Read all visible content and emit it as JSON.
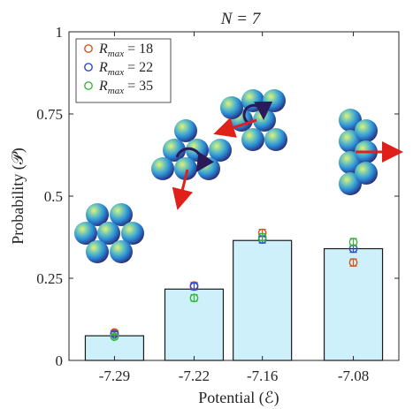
{
  "chart_data": {
    "type": "bar",
    "title": "N = 7",
    "xlabel": "Potential (ℰ)",
    "ylabel": "Probability (𝒫)",
    "x_positions": [
      -7.29,
      -7.22,
      -7.16,
      -7.08
    ],
    "categories": [
      "-7.29",
      "-7.22",
      "-7.16",
      "-7.08"
    ],
    "values": [
      0.075,
      0.217,
      0.365,
      0.34
    ],
    "xlim": [
      -7.33,
      -7.04
    ],
    "ylim": [
      0,
      1
    ],
    "yticks": [
      "0",
      "0.25",
      "0.5",
      "0.75",
      "1"
    ],
    "ytick_values": [
      0,
      0.25,
      0.5,
      0.75,
      1
    ],
    "bar_color": "#cdf0fb",
    "series": [
      {
        "name": "R_max = 18",
        "label_main": "R",
        "label_sub": "max",
        "label_rest": " = 18",
        "color": "#d95319",
        "values": [
          0.085,
          0.228,
          0.388,
          0.298
        ],
        "err": [
          0.007,
          0.01,
          0.011,
          0.011
        ]
      },
      {
        "name": "R_max = 22",
        "label_main": "R",
        "label_sub": "max",
        "label_rest": " = 22",
        "color": "#2c49d8",
        "values": [
          0.08,
          0.225,
          0.368,
          0.34
        ],
        "err": [
          0.007,
          0.01,
          0.011,
          0.011
        ]
      },
      {
        "name": "R_max = 35",
        "label_main": "R",
        "label_sub": "max",
        "label_rest": " = 35",
        "color": "#3cb43c",
        "values": [
          0.072,
          0.19,
          0.375,
          0.36
        ],
        "err": [
          0.007,
          0.01,
          0.011,
          0.011
        ]
      }
    ],
    "legend_position": "top-left",
    "grid": false
  }
}
